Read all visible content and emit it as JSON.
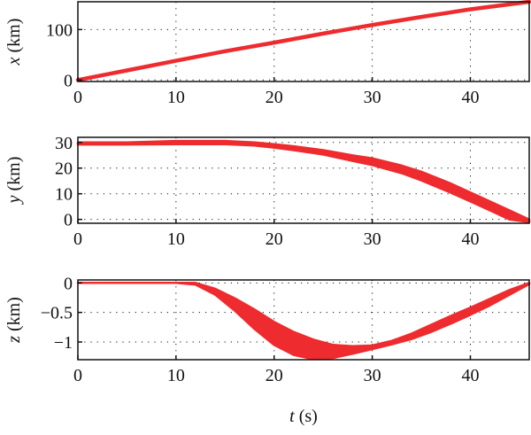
{
  "chart_data": [
    {
      "type": "line",
      "ylabel_var": "x",
      "ylabel_unit": "(km)",
      "xlim": [
        0,
        46
      ],
      "ylim": [
        -3,
        155
      ],
      "xticks": [
        0,
        10,
        20,
        30,
        40
      ],
      "yticks": [
        0,
        100
      ],
      "ytick_labels": [
        "0",
        "100"
      ],
      "grid": true,
      "color": "#ee2b2e",
      "band": false,
      "series": [
        {
          "x": [
            0,
            5,
            10,
            15,
            20,
            25,
            30,
            35,
            40,
            46
          ],
          "y": [
            0,
            19,
            38,
            57,
            74,
            92,
            109,
            125,
            140,
            155
          ]
        }
      ]
    },
    {
      "type": "line",
      "ylabel_var": "y",
      "ylabel_unit": "(km)",
      "xlim": [
        0,
        46
      ],
      "ylim": [
        -1.5,
        32
      ],
      "xticks": [
        0,
        10,
        20,
        30,
        40
      ],
      "yticks": [
        0,
        10,
        20,
        30
      ],
      "ytick_labels": [
        "0",
        "10",
        "20",
        "30"
      ],
      "grid": true,
      "color": "#ee2b2e",
      "band": true,
      "series": [
        {
          "name": "upper",
          "x": [
            0,
            5,
            10,
            15,
            18,
            20,
            22,
            25,
            28,
            30,
            33,
            35,
            38,
            40,
            42,
            44,
            46
          ],
          "y": [
            30,
            30,
            30.6,
            30.6,
            30,
            29.3,
            28.5,
            27,
            25,
            23.8,
            21,
            18.6,
            14,
            10.5,
            7,
            3.5,
            0
          ]
        },
        {
          "name": "lower",
          "x": [
            0,
            5,
            10,
            15,
            18,
            20,
            22,
            25,
            28,
            30,
            33,
            35,
            38,
            40,
            42,
            44,
            46
          ],
          "y": [
            29.2,
            29.2,
            29.3,
            29.3,
            28.8,
            28,
            27,
            25.3,
            22.8,
            21.2,
            18,
            15.2,
            10.4,
            7,
            3.5,
            0,
            -1
          ]
        }
      ]
    },
    {
      "type": "line",
      "ylabel_var": "z",
      "ylabel_unit": "(km)",
      "xlabel_var": "t",
      "xlabel_unit": "(s)",
      "xlim": [
        0,
        46
      ],
      "ylim": [
        -1.3,
        0.05
      ],
      "xticks": [
        0,
        10,
        20,
        30,
        40
      ],
      "yticks": [
        0,
        -0.5,
        -1
      ],
      "ytick_labels": [
        "0",
        "−0.5",
        "−1"
      ],
      "grid": true,
      "color": "#ee2b2e",
      "band": true,
      "series": [
        {
          "name": "upper",
          "x": [
            0,
            8,
            10,
            12,
            14,
            16,
            18,
            20,
            22,
            24,
            26,
            28,
            30,
            32,
            34,
            36,
            38,
            40,
            42,
            44,
            46
          ],
          "y": [
            0,
            0,
            0,
            0,
            -0.1,
            -0.26,
            -0.45,
            -0.66,
            -0.83,
            -0.96,
            -1.05,
            -1.07,
            -1.06,
            -0.98,
            -0.86,
            -0.71,
            -0.56,
            -0.42,
            -0.27,
            -0.12,
            0
          ]
        },
        {
          "name": "lower",
          "x": [
            0,
            8,
            10,
            12,
            14,
            16,
            18,
            20,
            22,
            24,
            26,
            28,
            30,
            32,
            34,
            36,
            38,
            40,
            42,
            44,
            46
          ],
          "y": [
            0,
            0,
            0,
            -0.03,
            -0.2,
            -0.47,
            -0.78,
            -1.05,
            -1.22,
            -1.29,
            -1.27,
            -1.2,
            -1.12,
            -1.04,
            -0.95,
            -0.83,
            -0.69,
            -0.54,
            -0.38,
            -0.2,
            -0.02
          ]
        }
      ]
    }
  ]
}
